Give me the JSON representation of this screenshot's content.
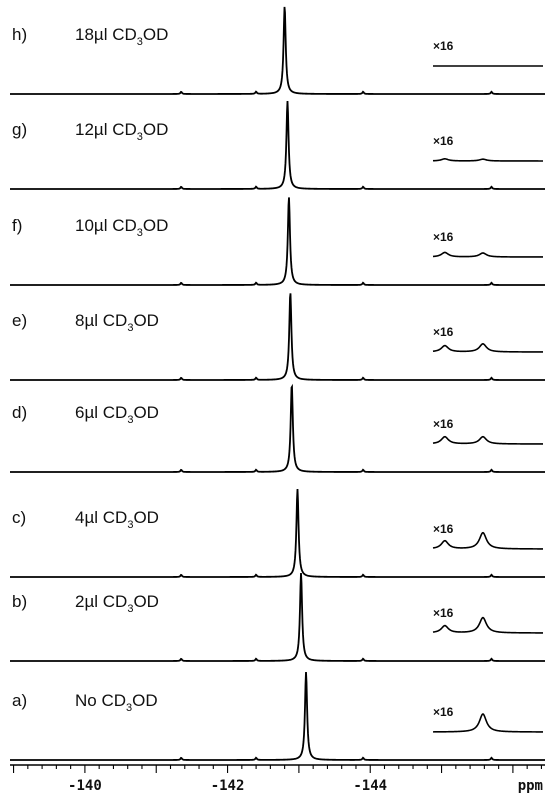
{
  "chart_data": {
    "type": "line",
    "xlabel": "ppm",
    "xlim": [
      -138.95,
      -146.45
    ],
    "x_ticks": [
      -140,
      -142,
      -144
    ],
    "x_tick_labels": [
      "-140",
      "-142",
      "-144"
    ],
    "grid": false,
    "legend": "none",
    "series": [
      {
        "id": "h",
        "panel_label": "h)",
        "sample": "18µl CD",
        "sub": "3",
        "suffix": "OD",
        "main_peak_ppm": -142.8,
        "small_peaks_ppm": [
          -141.35,
          -142.4,
          -143.9,
          -145.7
        ],
        "inset_label": "×16",
        "inset_peaks_ppm": [],
        "inset_peak_heights": []
      },
      {
        "id": "g",
        "panel_label": "g)",
        "sample": "12µl CD",
        "sub": "3",
        "suffix": "OD",
        "main_peak_ppm": -142.84,
        "small_peaks_ppm": [
          -141.35,
          -142.4,
          -143.9,
          -145.7
        ],
        "inset_label": "×16",
        "inset_peaks_ppm": [
          -145.04,
          -145.49
        ],
        "inset_peak_heights": [
          0.12,
          0.1
        ]
      },
      {
        "id": "f",
        "panel_label": "f)",
        "sample": "10µl CD",
        "sub": "3",
        "suffix": "OD",
        "main_peak_ppm": -142.86,
        "small_peaks_ppm": [
          -141.35,
          -142.4,
          -143.9,
          -145.7
        ],
        "inset_label": "×16",
        "inset_peaks_ppm": [
          -145.04,
          -145.49
        ],
        "inset_peak_heights": [
          0.25,
          0.22
        ]
      },
      {
        "id": "e",
        "panel_label": "e)",
        "sample": "8µl CD",
        "sub": "3",
        "suffix": "OD",
        "main_peak_ppm": -142.88,
        "small_peaks_ppm": [
          -141.35,
          -142.4,
          -143.9,
          -145.7
        ],
        "inset_label": "×16",
        "inset_peaks_ppm": [
          -145.04,
          -145.49
        ],
        "inset_peak_heights": [
          0.35,
          0.45
        ]
      },
      {
        "id": "d",
        "panel_label": "d)",
        "sample": "6µl CD",
        "sub": "3",
        "suffix": "OD",
        "main_peak_ppm": -142.9,
        "small_peaks_ppm": [
          -141.35,
          -142.4,
          -143.9,
          -145.7
        ],
        "inset_label": "×16",
        "inset_peaks_ppm": [
          -145.04,
          -145.49
        ],
        "inset_peak_heights": [
          0.4,
          0.4
        ]
      },
      {
        "id": "c",
        "panel_label": "c)",
        "sample": "4µl CD",
        "sub": "3",
        "suffix": "OD",
        "main_peak_ppm": -142.98,
        "small_peaks_ppm": [
          -141.35,
          -142.4,
          -143.9,
          -145.7
        ],
        "inset_label": "×16",
        "inset_peaks_ppm": [
          -145.04,
          -145.49
        ],
        "inset_peak_heights": [
          0.45,
          0.9
        ]
      },
      {
        "id": "b",
        "panel_label": "b)",
        "sample": "2µl CD",
        "sub": "3",
        "suffix": "OD",
        "main_peak_ppm": -143.03,
        "small_peaks_ppm": [
          -141.35,
          -142.4,
          -143.9,
          -145.7
        ],
        "inset_label": "×16",
        "inset_peaks_ppm": [
          -145.04,
          -145.49
        ],
        "inset_peak_heights": [
          0.4,
          0.85
        ]
      },
      {
        "id": "a",
        "panel_label": "a)",
        "sample": "No CD",
        "sub": "3",
        "suffix": "OD",
        "main_peak_ppm": -143.1,
        "small_peaks_ppm": [
          -141.35,
          -142.4,
          -143.9,
          -145.7
        ],
        "inset_label": "×16",
        "inset_peaks_ppm": [
          -145.49
        ],
        "inset_peak_heights": [
          1.0
        ]
      }
    ]
  }
}
